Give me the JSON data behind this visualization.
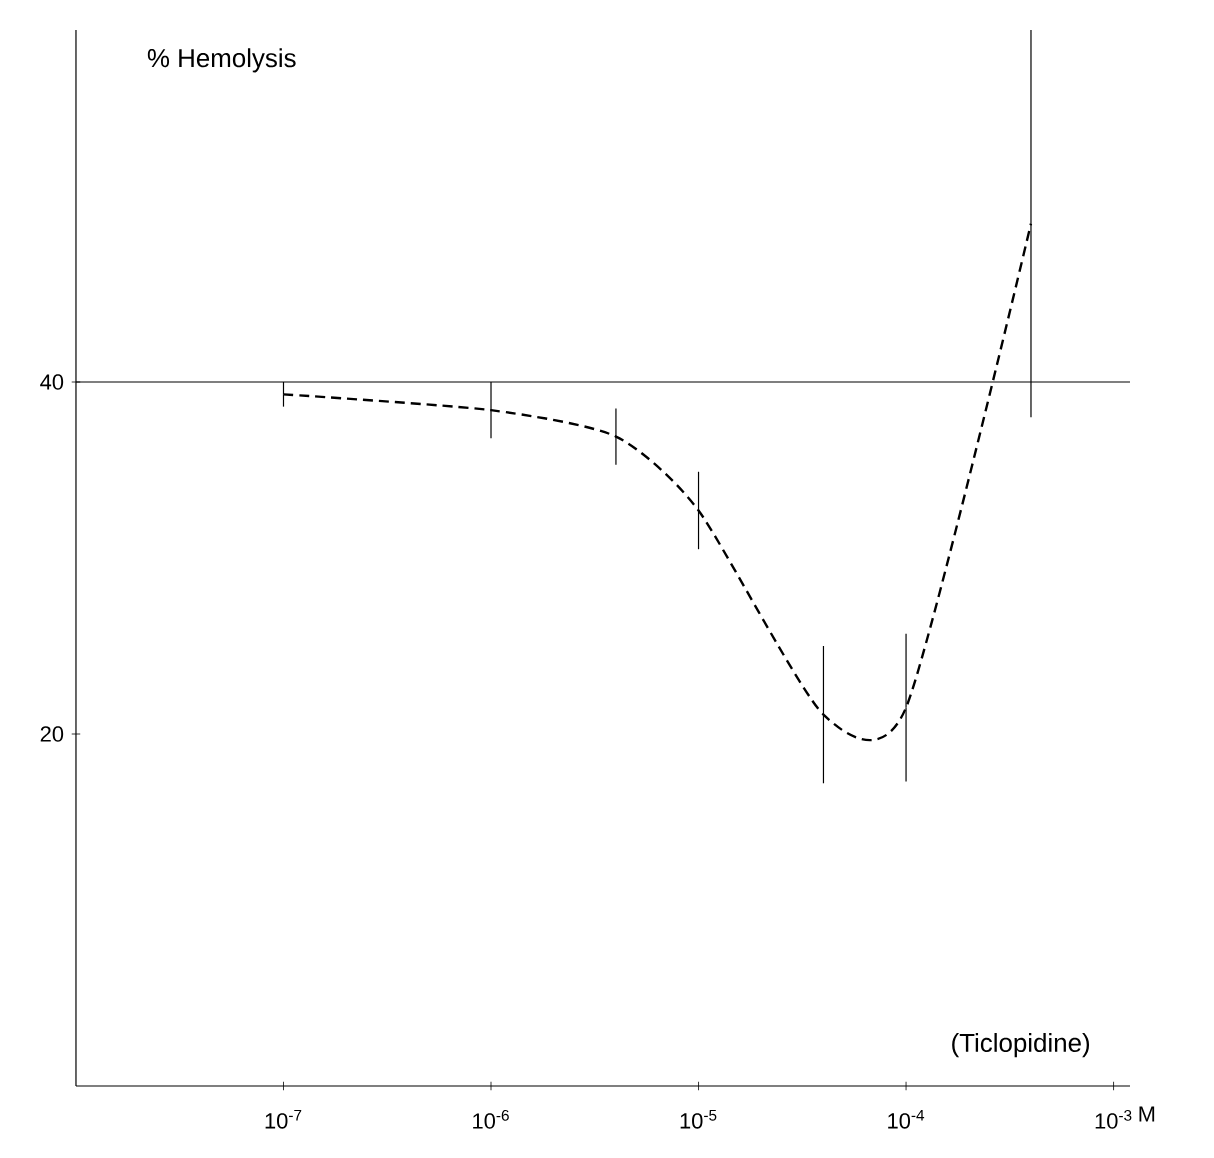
{
  "chart_data": {
    "type": "line",
    "ylabel": "% Hemolysis",
    "xlabel": "M",
    "annotations": [
      "(Ticlopidine)"
    ],
    "log": "x",
    "x": [
      1e-07,
      1e-06,
      4e-06,
      1e-05,
      4e-05,
      0.0001,
      0.0004
    ],
    "series": [
      {
        "color": "#000000",
        "values": [
          39.3,
          38.4,
          36.9,
          32.7,
          21.1,
          21.5,
          49.0
        ],
        "errors": [
          0.7,
          1.6,
          1.6,
          2.2,
          3.9,
          4.2,
          11
        ]
      }
    ],
    "xlim": [
      1e-08,
      0.0012
    ],
    "xticks": [
      {
        "value": 1e-07,
        "label": "10$^{-7}$"
      },
      {
        "value": 1e-06,
        "label": "10$^{-6}$"
      },
      {
        "value": 1e-05,
        "label": "10$^{-5}$"
      },
      {
        "value": 0.0001,
        "label": "10$^{-4}$"
      },
      {
        "value": 0.001,
        "label": "10$^{-3}$"
      }
    ],
    "ylim": [
      0,
      60
    ],
    "yticks": [
      20,
      40
    ],
    "ref_lines": [
      {
        "axis": "y",
        "value": 40
      }
    ],
    "marker": "none",
    "line_style": "dashed"
  }
}
